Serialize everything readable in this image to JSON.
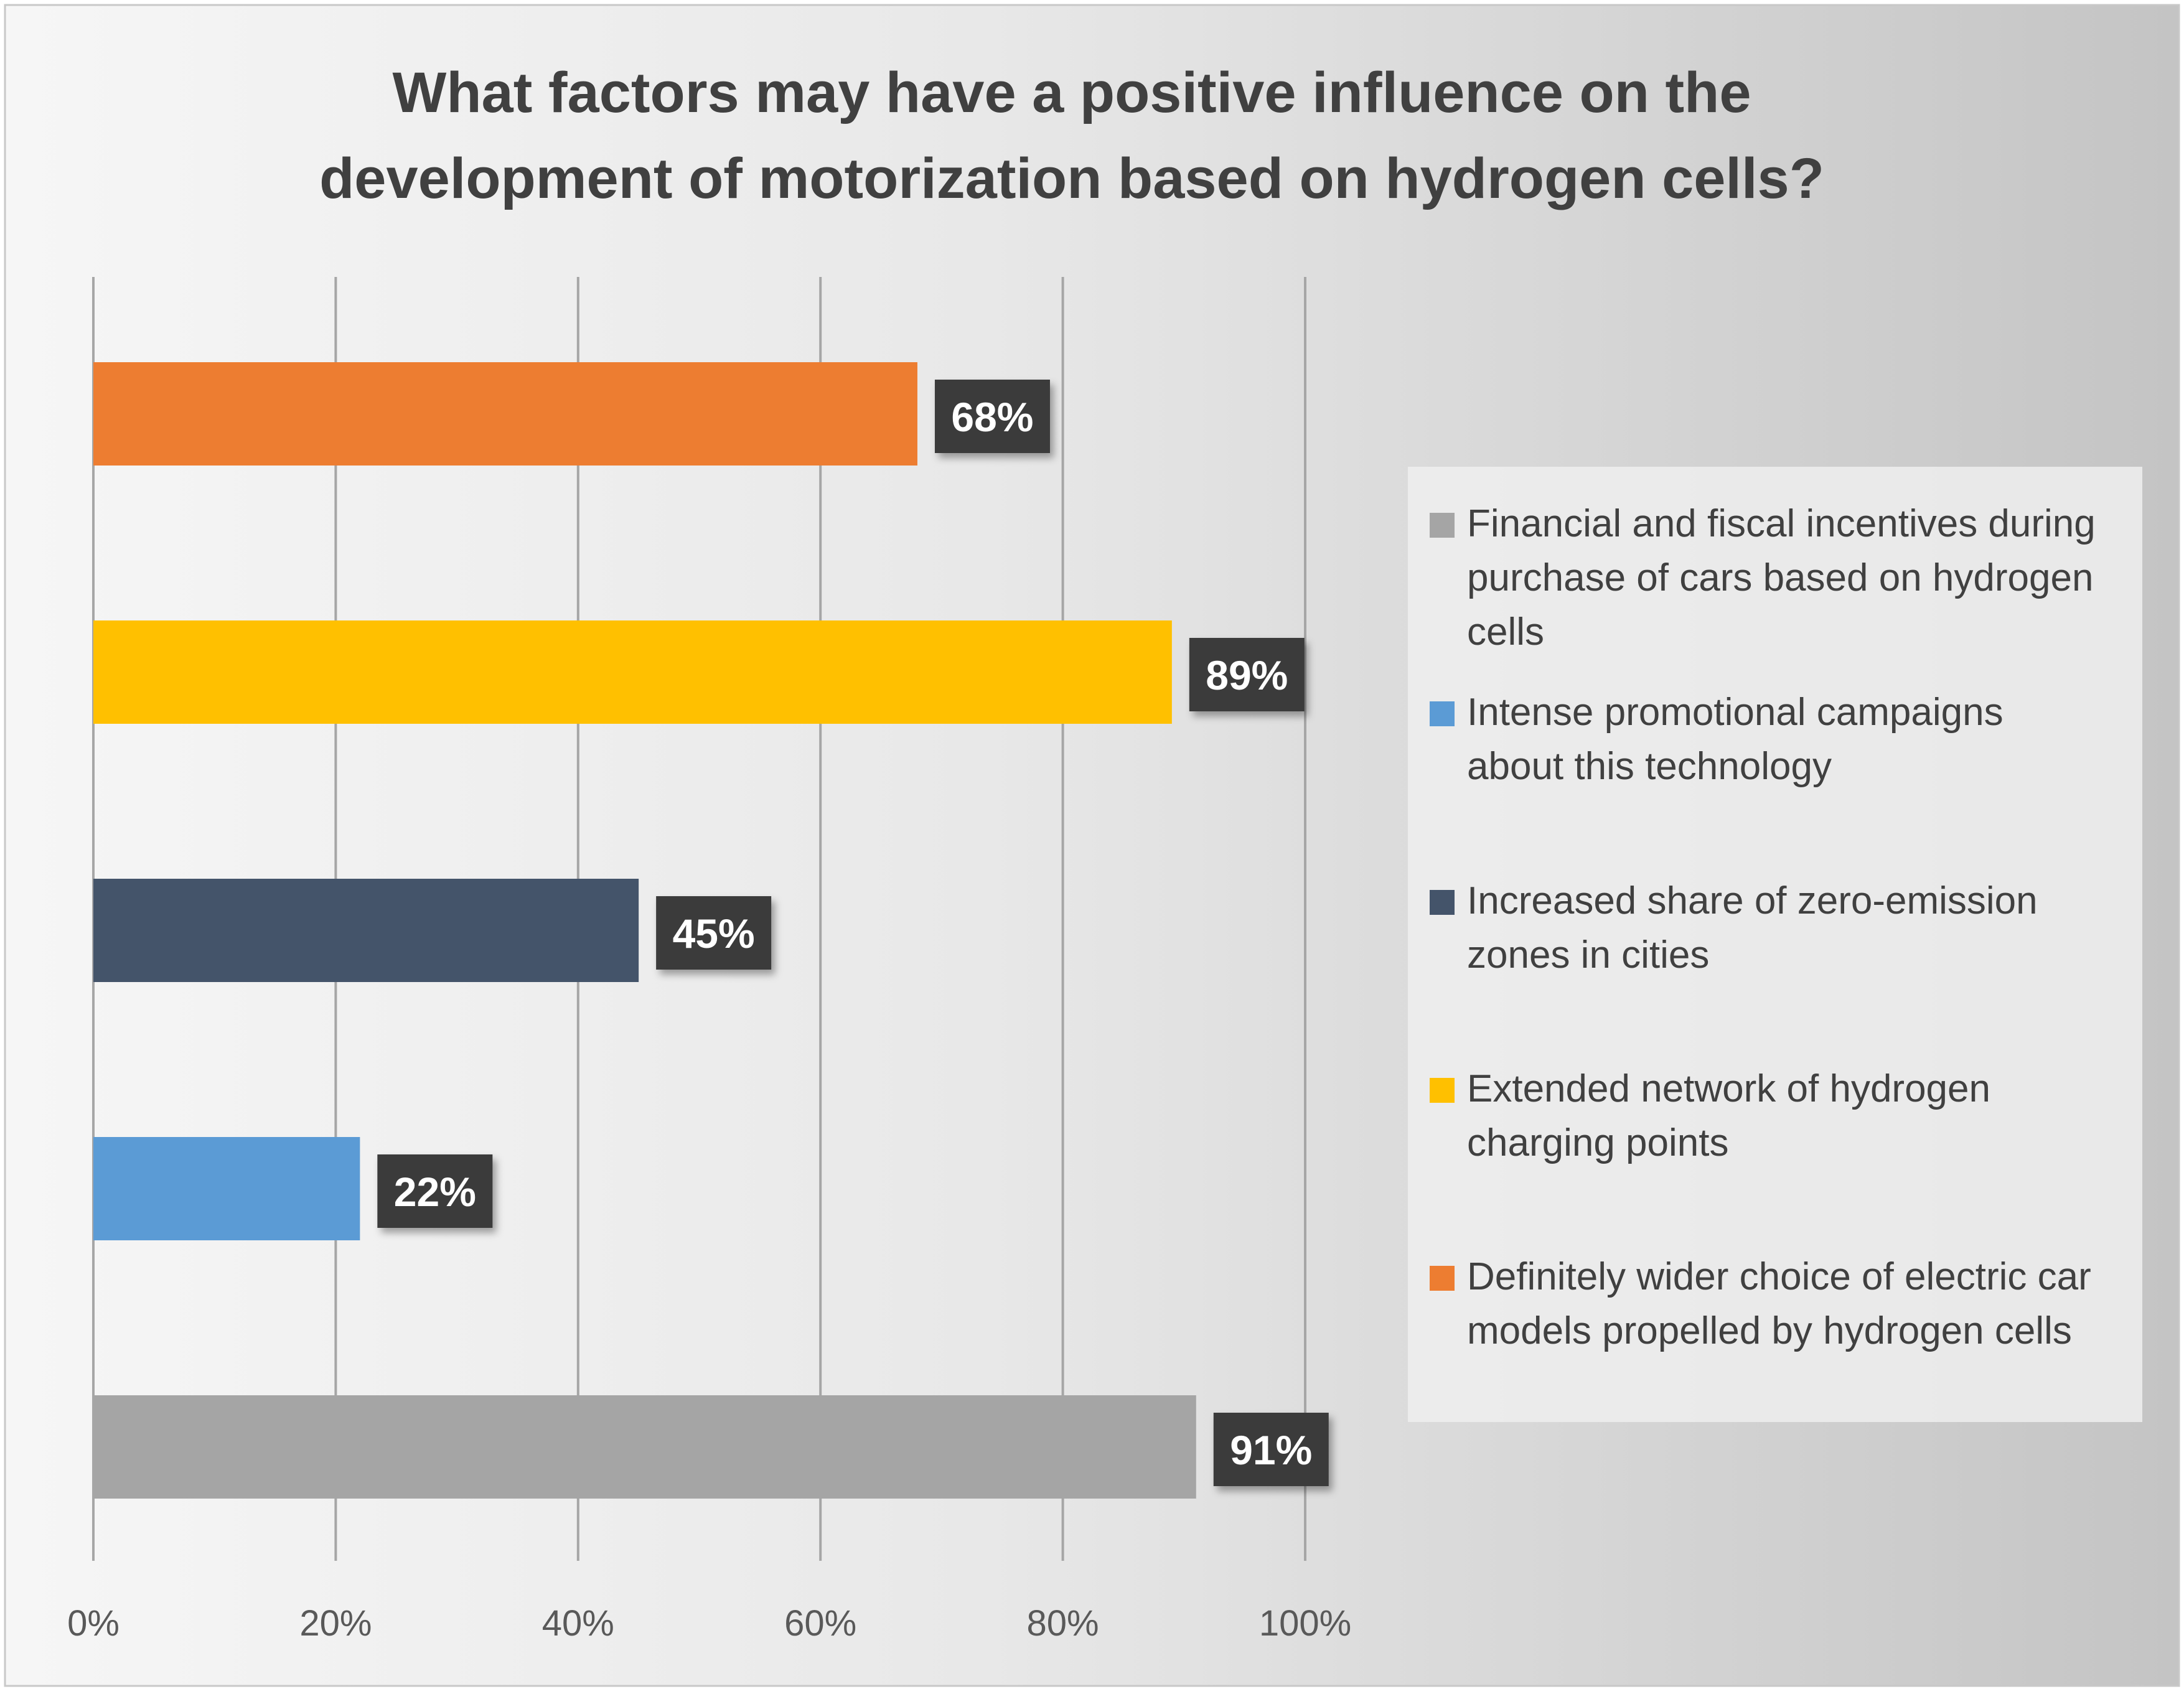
{
  "chart_data": {
    "type": "bar",
    "orientation": "horizontal",
    "title_lines": [
      "What factors may have a positive influence on the",
      "development of motorization based on hydrogen cells?"
    ],
    "categories": [
      "Financial and fiscal incentives during purchase of cars based on hydrogen cells",
      "Intense promotional campaigns about this technology",
      "Increased share of zero-emission zones in cities",
      "Extended network of hydrogen charging points",
      "Definitely wider choice of electric car models propelled by hydrogen cells"
    ],
    "values": [
      91,
      22,
      45,
      89,
      68
    ],
    "data_labels": [
      "91%",
      "22%",
      "45%",
      "89%",
      "68%"
    ],
    "colors": [
      "#a5a5a5",
      "#5b9bd5",
      "#44546a",
      "#ffc000",
      "#ed7d31"
    ],
    "legend": {
      "placement": "right",
      "entries": [
        {
          "lines": [
            "Financial and fiscal incentives during",
            "purchase of cars based on hydrogen",
            "cells"
          ],
          "color": "#a5a5a5"
        },
        {
          "lines": [
            "Intense promotional campaigns",
            "about this technology"
          ],
          "color": "#5b9bd5"
        },
        {
          "lines": [
            "Increased share of zero-emission",
            "zones in cities"
          ],
          "color": "#44546a"
        },
        {
          "lines": [
            "Extended network of hydrogen",
            "charging points"
          ],
          "color": "#ffc000"
        },
        {
          "lines": [
            "Definitely wider choice of electric car",
            "models propelled by hydrogen cells"
          ],
          "color": "#ed7d31"
        }
      ]
    },
    "xlim": [
      0,
      100
    ],
    "x_ticks": [
      0,
      20,
      40,
      60,
      80,
      100
    ],
    "x_tick_labels": [
      "0%",
      "20%",
      "40%",
      "60%",
      "80%",
      "100%"
    ],
    "grid": true,
    "xlabel": "",
    "ylabel": "",
    "colors_theme": {
      "label_box": "#3a3a3a",
      "label_text": "#ffffff",
      "title_text": "#404040",
      "tick_text": "#595959",
      "gridline": "#a6a6a6"
    }
  }
}
